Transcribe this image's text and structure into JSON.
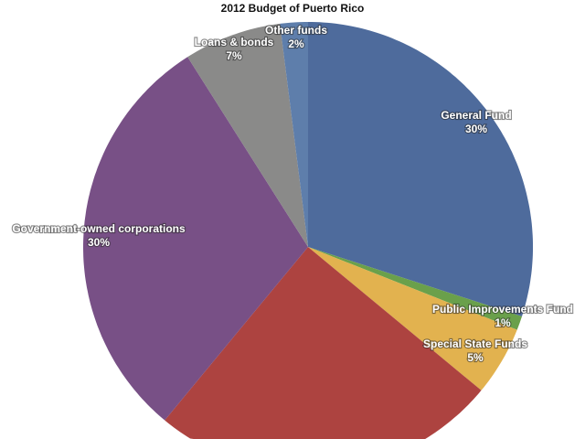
{
  "chart_data": {
    "type": "pie",
    "title": "2012 Budget of Puerto Rico",
    "start_angle": "top, clockwise",
    "slices": [
      {
        "name": "General Fund",
        "value": 30,
        "label": "30%",
        "color": "#4e6b9c"
      },
      {
        "name": "Public Improvements Fund",
        "value": 1,
        "label": "1%",
        "color": "#6aa04b"
      },
      {
        "name": "Special State Funds",
        "value": 5,
        "label": "5%",
        "color": "#e2b24f"
      },
      {
        "name": "",
        "value": 25,
        "label": "",
        "color": "#ad4340"
      },
      {
        "name": "Government-owned corporations",
        "value": 30,
        "label": "30%",
        "color": "#785086"
      },
      {
        "name": "Loans & bonds",
        "value": 7,
        "label": "7%",
        "color": "#8a8a89"
      },
      {
        "name": "Other funds",
        "value": 2,
        "label": "2%",
        "color": "#5e7eab"
      }
    ]
  }
}
